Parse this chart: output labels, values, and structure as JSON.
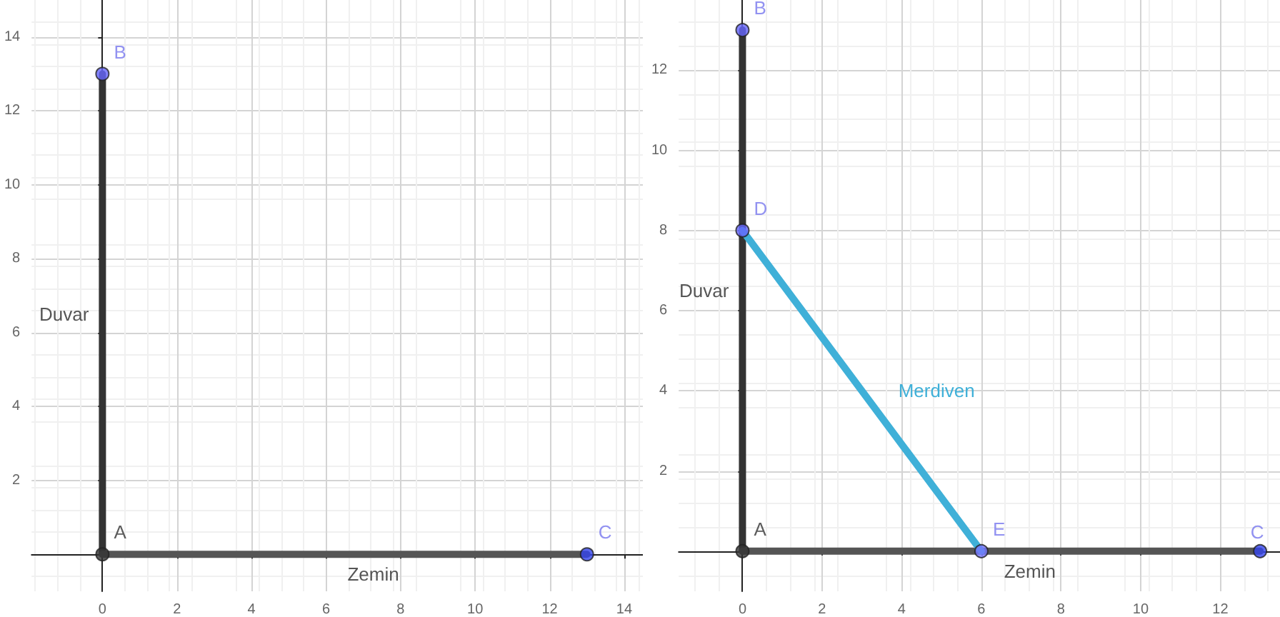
{
  "chart_data": [
    {
      "type": "line",
      "xlim": [
        -1.9,
        14.5
      ],
      "ylim": [
        -1,
        15
      ],
      "xticks": [
        0,
        2,
        4,
        6,
        8,
        10,
        12,
        14
      ],
      "yticks": [
        2,
        4,
        6,
        8,
        10,
        12,
        14
      ],
      "grid": true,
      "legend": false,
      "series": [
        {
          "name": "Duvar",
          "color": "#333333",
          "x": [
            0,
            0
          ],
          "values": [
            0,
            13
          ]
        },
        {
          "name": "Zemin",
          "color": "#555555",
          "x": [
            0,
            13
          ],
          "values": [
            0,
            0
          ]
        },
        {
          "type": "scatter",
          "marker": "circle",
          "x": [
            0,
            0,
            13
          ],
          "values": [
            0,
            13,
            0
          ],
          "colors": [
            "#333333",
            "#6666ff",
            "#3344ee"
          ]
        }
      ],
      "annotations": [
        {
          "text": "A",
          "x": 0,
          "y": 0
        },
        {
          "text": "B",
          "x": 0,
          "y": 13
        },
        {
          "text": "C",
          "x": 13,
          "y": 0
        }
      ]
    },
    {
      "type": "line",
      "xlim": [
        -1.6,
        13.5
      ],
      "ylim": [
        -1,
        13.75
      ],
      "xticks": [
        0,
        2,
        4,
        6,
        8,
        10,
        12
      ],
      "yticks": [
        2,
        4,
        6,
        8,
        10,
        12
      ],
      "grid": true,
      "legend": false,
      "series": [
        {
          "name": "Duvar",
          "color": "#333333",
          "x": [
            0,
            0
          ],
          "values": [
            0,
            13
          ]
        },
        {
          "name": "Zemin",
          "color": "#555555",
          "x": [
            0,
            13
          ],
          "values": [
            0,
            0
          ]
        },
        {
          "name": "Merdiven",
          "color": "#3fb0d8",
          "x": [
            0,
            6
          ],
          "values": [
            8,
            0
          ]
        },
        {
          "type": "scatter",
          "marker": "circle",
          "x": [
            0,
            0,
            13,
            0,
            6
          ],
          "values": [
            0,
            13,
            0,
            8,
            0
          ],
          "colors": [
            "#333333",
            "#6666ff",
            "#3344ee",
            "#6666ff",
            "#7777ff"
          ]
        }
      ],
      "annotations": [
        {
          "text": "A",
          "x": 0,
          "y": 0
        },
        {
          "text": "B",
          "x": 0,
          "y": 13
        },
        {
          "text": "C",
          "x": 13,
          "y": 0
        },
        {
          "text": "D",
          "x": 0,
          "y": 8
        },
        {
          "text": "E",
          "x": 6,
          "y": 0
        }
      ]
    }
  ]
}
